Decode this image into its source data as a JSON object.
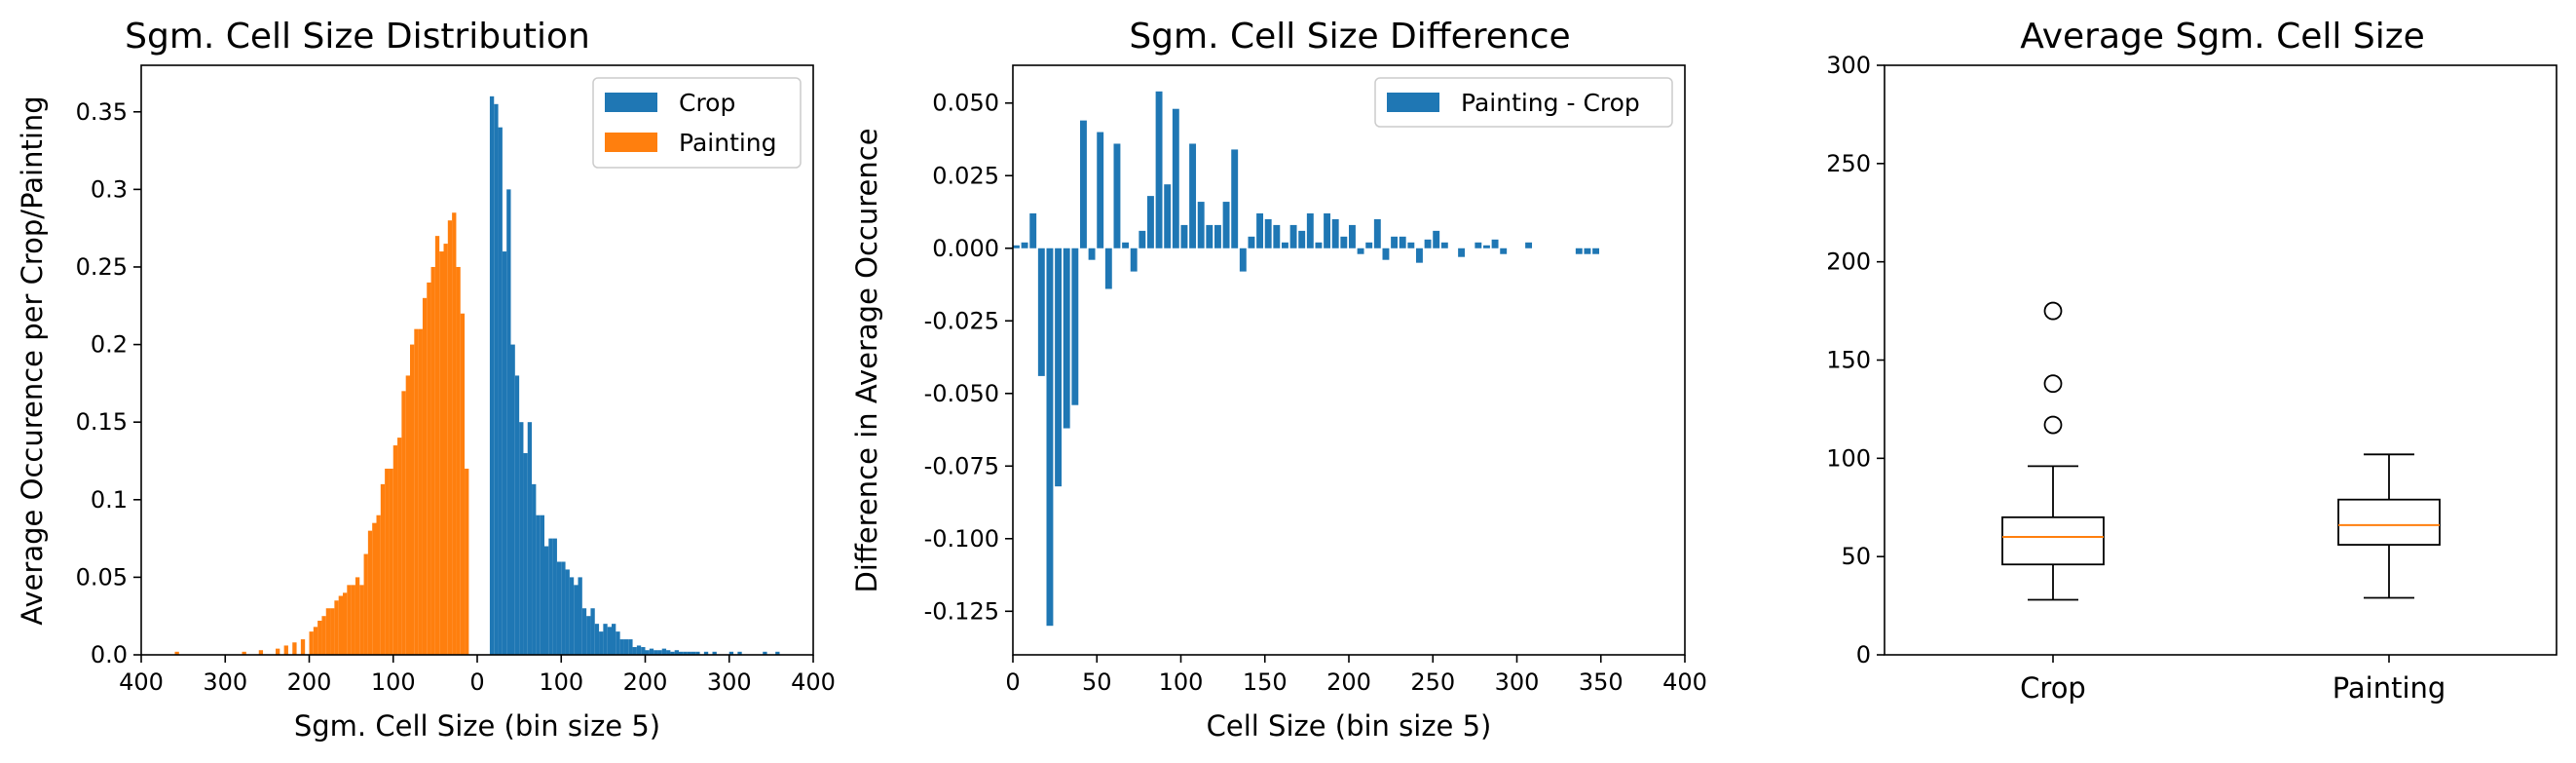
{
  "colors": {
    "crop": "#1f77b4",
    "painting": "#ff7f0e",
    "median": "#ff7f0e",
    "axis": "#000000"
  },
  "chart_data": [
    {
      "type": "bar",
      "title": "Sgm. Cell Size Distribution",
      "xlabel": "Sgm. Cell Size (bin size 5)",
      "ylabel": "Average Occurence per Crop/Painting",
      "xlim": [
        -400,
        400
      ],
      "ylim": [
        0,
        0.38
      ],
      "x_tick_values": [
        -400,
        -300,
        -200,
        -100,
        0,
        100,
        200,
        300,
        400
      ],
      "x_tick_labels": [
        "400",
        "300",
        "200",
        "100",
        "0",
        "100",
        "200",
        "300",
        "400"
      ],
      "y_ticks": [
        "0.0",
        "0.05",
        "0.1",
        "0.15",
        "0.2",
        "0.25",
        "0.3",
        "0.35"
      ],
      "y_tick_values": [
        0,
        0.05,
        0.1,
        0.15,
        0.2,
        0.25,
        0.3,
        0.35
      ],
      "legend": {
        "placement": "top-right",
        "entries": [
          "Crop",
          "Painting"
        ]
      },
      "bin_width": 5,
      "series": [
        {
          "name": "Crop",
          "color": "#1f77b4",
          "x": [
            15,
            20,
            25,
            30,
            35,
            40,
            45,
            50,
            55,
            60,
            65,
            70,
            75,
            80,
            85,
            90,
            95,
            100,
            105,
            110,
            115,
            120,
            125,
            130,
            135,
            140,
            145,
            150,
            155,
            160,
            165,
            170,
            175,
            180,
            185,
            190,
            195,
            200,
            205,
            210,
            215,
            220,
            225,
            230,
            235,
            240,
            245,
            250,
            255,
            260,
            270,
            280,
            300,
            310,
            340,
            355
          ],
          "values": [
            0.36,
            0.355,
            0.34,
            0.26,
            0.3,
            0.2,
            0.18,
            0.15,
            0.13,
            0.15,
            0.11,
            0.09,
            0.09,
            0.07,
            0.075,
            0.075,
            0.06,
            0.06,
            0.055,
            0.05,
            0.045,
            0.05,
            0.03,
            0.025,
            0.03,
            0.02,
            0.015,
            0.02,
            0.018,
            0.02,
            0.015,
            0.01,
            0.01,
            0.01,
            0.005,
            0.006,
            0.005,
            0.003,
            0.004,
            0.003,
            0.003,
            0.004,
            0.003,
            0.002,
            0.003,
            0.002,
            0.002,
            0.002,
            0.002,
            0.002,
            0.002,
            0.002,
            0.002,
            0.002,
            0.002,
            0.002
          ]
        },
        {
          "name": "Painting",
          "color": "#ff7f0e",
          "x": [
            -360,
            -280,
            -260,
            -240,
            -230,
            -220,
            -210,
            -200,
            -195,
            -190,
            -185,
            -180,
            -175,
            -170,
            -165,
            -160,
            -155,
            -150,
            -145,
            -140,
            -135,
            -130,
            -125,
            -120,
            -115,
            -110,
            -105,
            -100,
            -95,
            -90,
            -85,
            -80,
            -75,
            -70,
            -65,
            -60,
            -55,
            -50,
            -45,
            -40,
            -35,
            -30,
            -25,
            -20,
            -15
          ],
          "values": [
            0.002,
            0.002,
            0.003,
            0.004,
            0.006,
            0.008,
            0.01,
            0.015,
            0.018,
            0.022,
            0.025,
            0.03,
            0.03,
            0.035,
            0.038,
            0.04,
            0.045,
            0.045,
            0.05,
            0.045,
            0.065,
            0.08,
            0.085,
            0.09,
            0.11,
            0.12,
            0.12,
            0.135,
            0.14,
            0.17,
            0.18,
            0.2,
            0.21,
            0.21,
            0.23,
            0.24,
            0.25,
            0.27,
            0.26,
            0.265,
            0.28,
            0.285,
            0.25,
            0.22,
            0.12
          ]
        }
      ]
    },
    {
      "type": "bar",
      "title": "Sgm. Cell Size Difference",
      "xlabel": "Cell Size (bin size 5)",
      "ylabel": "Difference in Average Occurence",
      "xlim": [
        0,
        400
      ],
      "ylim": [
        -0.14,
        0.063
      ],
      "x_ticks": [
        "0",
        "50",
        "100",
        "150",
        "200",
        "250",
        "300",
        "350",
        "400"
      ],
      "x_tick_values": [
        0,
        50,
        100,
        150,
        200,
        250,
        300,
        350,
        400
      ],
      "y_ticks": [
        "0.050",
        "0.025",
        "0.000",
        "-0.025",
        "-0.050",
        "-0.075",
        "-0.100",
        "-0.125"
      ],
      "y_tick_values": [
        0.05,
        0.025,
        0,
        -0.025,
        -0.05,
        -0.075,
        -0.1,
        -0.125
      ],
      "legend": {
        "placement": "top-right",
        "entries": [
          "Painting - Crop"
        ]
      },
      "bin_width": 5,
      "series": [
        {
          "name": "Painting - Crop",
          "color": "#1f77b4",
          "x": [
            0,
            5,
            10,
            15,
            20,
            25,
            30,
            35,
            40,
            45,
            50,
            55,
            60,
            65,
            70,
            75,
            80,
            85,
            90,
            95,
            100,
            105,
            110,
            115,
            120,
            125,
            130,
            135,
            140,
            145,
            150,
            155,
            160,
            165,
            170,
            175,
            180,
            185,
            190,
            195,
            200,
            205,
            210,
            215,
            220,
            225,
            230,
            235,
            240,
            245,
            250,
            255,
            265,
            275,
            280,
            285,
            290,
            305,
            335,
            340,
            345
          ],
          "values": [
            0.001,
            0.002,
            0.012,
            -0.044,
            -0.13,
            -0.082,
            -0.062,
            -0.054,
            0.044,
            -0.004,
            0.04,
            -0.014,
            0.036,
            0.002,
            -0.008,
            0.006,
            0.018,
            0.054,
            0.022,
            0.048,
            0.008,
            0.036,
            0.016,
            0.008,
            0.008,
            0.016,
            0.034,
            -0.008,
            0.004,
            0.012,
            0.01,
            0.008,
            0.002,
            0.008,
            0.006,
            0.012,
            0.002,
            0.012,
            0.01,
            0.004,
            0.008,
            -0.002,
            0.002,
            0.01,
            -0.004,
            0.004,
            0.004,
            0.002,
            -0.005,
            0.003,
            0.006,
            0.002,
            -0.003,
            0.002,
            0.001,
            0.003,
            -0.002,
            0.002,
            -0.002,
            -0.002,
            -0.002
          ]
        }
      ]
    },
    {
      "type": "box",
      "title": "Average Sgm. Cell Size",
      "xlabel": "",
      "ylabel": "",
      "categories": [
        "Crop",
        "Painting"
      ],
      "ylim": [
        0,
        300
      ],
      "y_ticks": [
        "0",
        "50",
        "100",
        "150",
        "200",
        "250",
        "300"
      ],
      "y_tick_values": [
        0,
        50,
        100,
        150,
        200,
        250,
        300
      ],
      "boxes": [
        {
          "name": "Crop",
          "whisker_low": 28,
          "q1": 46,
          "median": 60,
          "q3": 70,
          "whisker_high": 96,
          "outliers": [
            117,
            138,
            175
          ]
        },
        {
          "name": "Painting",
          "whisker_low": 29,
          "q1": 56,
          "median": 66,
          "q3": 79,
          "whisker_high": 102,
          "outliers": []
        }
      ]
    }
  ]
}
